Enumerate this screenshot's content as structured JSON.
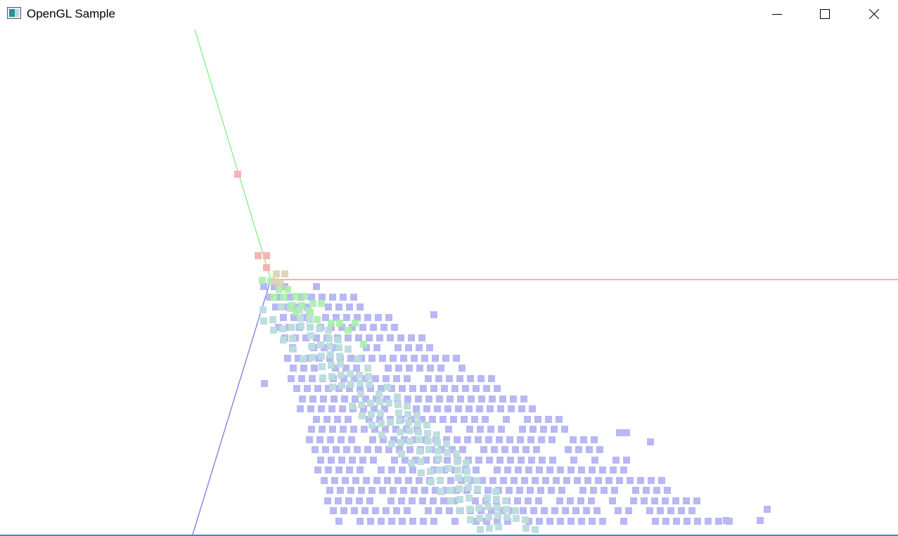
{
  "window": {
    "title": "OpenGL Sample",
    "app_icon": "opengl-app-icon",
    "controls": {
      "minimize_icon": "minimize-icon",
      "maximize_icon": "maximize-icon",
      "close_icon": "close-icon"
    }
  },
  "scene": {
    "background": "#ffffff",
    "axis_colors": {
      "x": "#f08080",
      "y": "#80f080",
      "z": "#7a7ae0"
    },
    "point_colors": {
      "blue": "#b8b8f4",
      "teal": "#bcdcdc",
      "green": "#a8f0a8",
      "pink": "#f8b4b4",
      "tan": "#dcd0b0"
    }
  }
}
